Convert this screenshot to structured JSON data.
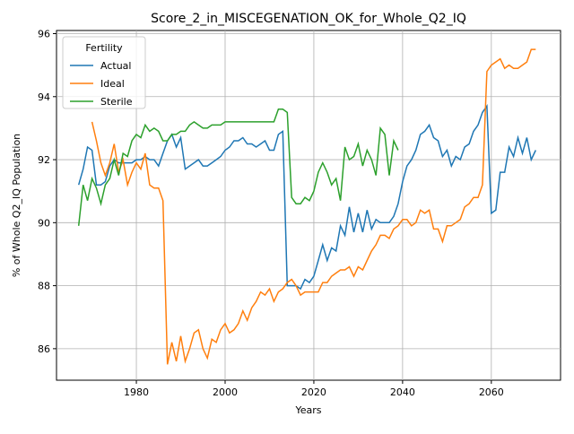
{
  "chart_data": {
    "type": "line",
    "title": "Score_2_in_MISCEGENATION_OK_for_Whole_Q2_IQ",
    "x_label": "Years",
    "y_label": "% of Whole Q2_IQ Population",
    "legend_title": "Fertility",
    "legend_loc": "upper left",
    "grid": true,
    "xlim": [
      1962,
      2075.6
    ],
    "ylim": [
      85.0,
      96.1
    ],
    "xticks": [
      1980,
      2000,
      2020,
      2040,
      2060
    ],
    "yticks": [
      86,
      88,
      90,
      92,
      94,
      96
    ],
    "x": [
      1967,
      1968,
      1969,
      1970,
      1971,
      1972,
      1973,
      1974,
      1975,
      1976,
      1977,
      1978,
      1979,
      1980,
      1981,
      1982,
      1983,
      1984,
      1985,
      1986,
      1987,
      1988,
      1989,
      1990,
      1991,
      1992,
      1993,
      1994,
      1995,
      1996,
      1997,
      1998,
      1999,
      2000,
      2001,
      2002,
      2003,
      2004,
      2005,
      2006,
      2007,
      2008,
      2009,
      2010,
      2011,
      2012,
      2013,
      2014,
      2015,
      2016,
      2017,
      2018,
      2019,
      2020,
      2021,
      2022,
      2023,
      2024,
      2025,
      2026,
      2027,
      2028,
      2029,
      2030,
      2031,
      2032,
      2033,
      2034,
      2035,
      2036,
      2037,
      2038,
      2039,
      2040,
      2041,
      2042,
      2043,
      2044,
      2045,
      2046,
      2047,
      2048,
      2049,
      2050,
      2051,
      2052,
      2053,
      2054,
      2055,
      2056,
      2057,
      2058,
      2059,
      2060,
      2061,
      2062,
      2063,
      2064,
      2065,
      2066,
      2067,
      2068,
      2069,
      2070
    ],
    "series": [
      {
        "name": "Actual",
        "color": "#1f77b4",
        "values": [
          91.2,
          91.7,
          92.4,
          92.3,
          91.2,
          91.2,
          91.3,
          91.8,
          92.0,
          91.9,
          91.9,
          91.9,
          91.9,
          92.0,
          92.0,
          92.1,
          92.0,
          92.0,
          91.8,
          92.2,
          92.6,
          92.8,
          92.4,
          92.7,
          91.7,
          91.8,
          91.9,
          92.0,
          91.8,
          91.8,
          91.9,
          92.0,
          92.1,
          92.3,
          92.4,
          92.6,
          92.6,
          92.7,
          92.5,
          92.5,
          92.4,
          92.5,
          92.6,
          92.3,
          92.3,
          92.8,
          92.9,
          88.0,
          88.0,
          88.0,
          87.9,
          88.2,
          88.1,
          88.3,
          88.8,
          89.3,
          88.8,
          89.2,
          89.1,
          89.9,
          89.6,
          90.5,
          89.7,
          90.3,
          89.7,
          90.4,
          89.8,
          90.1,
          90.0,
          90.0,
          90.0,
          90.2,
          90.6,
          91.3,
          91.8,
          92.0,
          92.3,
          92.8,
          92.9,
          93.1,
          92.7,
          92.6,
          92.1,
          92.3,
          91.8,
          92.1,
          92.0,
          92.4,
          92.5,
          92.9,
          93.1,
          93.5,
          93.7,
          90.3,
          90.4,
          91.6,
          91.6,
          92.4,
          92.1,
          92.7,
          92.2,
          92.7,
          92.0,
          92.3
        ]
      },
      {
        "name": "Ideal",
        "color": "#ff7f0e",
        "values": [
          null,
          null,
          null,
          93.2,
          92.6,
          91.9,
          91.5,
          91.9,
          92.5,
          91.6,
          92.0,
          91.2,
          91.6,
          91.9,
          91.7,
          92.2,
          91.2,
          91.1,
          91.1,
          90.7,
          85.5,
          86.2,
          85.6,
          86.4,
          85.6,
          86.0,
          86.5,
          86.6,
          86.0,
          85.7,
          86.3,
          86.2,
          86.6,
          86.8,
          86.5,
          86.6,
          86.8,
          87.2,
          86.9,
          87.3,
          87.5,
          87.8,
          87.7,
          87.9,
          87.5,
          87.8,
          87.9,
          88.1,
          88.2,
          88.0,
          87.7,
          87.8,
          87.8,
          87.8,
          87.8,
          88.1,
          88.1,
          88.3,
          88.4,
          88.5,
          88.5,
          88.6,
          88.3,
          88.6,
          88.5,
          88.8,
          89.1,
          89.3,
          89.6,
          89.6,
          89.5,
          89.8,
          89.9,
          90.1,
          90.1,
          89.9,
          90.0,
          90.4,
          90.3,
          90.4,
          89.8,
          89.8,
          89.4,
          89.9,
          89.9,
          90.0,
          90.1,
          90.5,
          90.6,
          90.8,
          90.8,
          91.2,
          94.8,
          95.0,
          95.1,
          95.2,
          94.9,
          95.0,
          94.9,
          94.9,
          95.0,
          95.1,
          95.5,
          95.5
        ]
      },
      {
        "name": "Sterile",
        "color": "#2ca02c",
        "values": [
          89.9,
          91.2,
          90.7,
          91.4,
          91.1,
          90.6,
          91.2,
          91.4,
          92.0,
          91.5,
          92.2,
          92.1,
          92.6,
          92.8,
          92.7,
          93.1,
          92.9,
          93.0,
          92.9,
          92.6,
          92.6,
          92.8,
          92.8,
          92.9,
          92.9,
          93.1,
          93.2,
          93.1,
          93.0,
          93.0,
          93.1,
          93.1,
          93.1,
          93.2,
          93.2,
          93.2,
          93.2,
          93.2,
          93.2,
          93.2,
          93.2,
          93.2,
          93.2,
          93.2,
          93.2,
          93.6,
          93.6,
          93.5,
          90.8,
          90.6,
          90.6,
          90.8,
          90.7,
          91.0,
          91.6,
          91.9,
          91.6,
          91.2,
          91.4,
          90.7,
          92.4,
          92.0,
          92.1,
          92.5,
          91.8,
          92.3,
          92.0,
          91.5,
          93.0,
          92.8,
          91.5,
          92.6,
          92.3,
          null,
          null,
          null,
          null,
          null,
          null,
          null,
          null,
          null,
          null,
          null,
          null,
          null,
          null,
          null,
          null,
          null,
          null,
          null,
          null,
          null,
          null,
          null,
          null,
          null,
          null,
          null,
          null,
          null,
          null,
          null
        ]
      }
    ]
  }
}
